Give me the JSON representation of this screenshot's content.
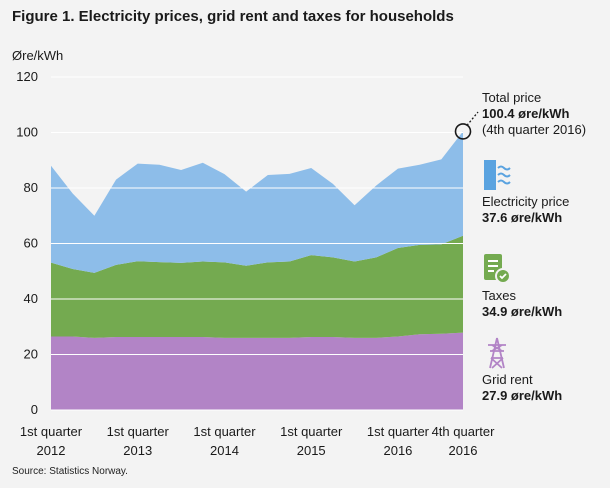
{
  "title": "Figure 1. Electricity prices, grid rent and taxes for households",
  "source": "Source: Statistics Norway.",
  "colors": {
    "electricity": "#8dbde9",
    "taxes": "#74aa50",
    "grid_rent": "#b284c6",
    "grid": "#ffffff",
    "icon": "#5aa3e0",
    "icon_tax": "#74aa50",
    "icon_grid": "#b284c6"
  },
  "chart_data": {
    "type": "area",
    "stacked": true,
    "title": "Figure 1. Electricity prices, grid rent and taxes for households",
    "ylabel": "Øre/kWh",
    "ylim": [
      0,
      120
    ],
    "yticks": [
      0,
      20,
      40,
      60,
      80,
      100,
      120
    ],
    "x": [
      "2012Q1",
      "2012Q2",
      "2012Q3",
      "2012Q4",
      "2013Q1",
      "2013Q2",
      "2013Q3",
      "2013Q4",
      "2014Q1",
      "2014Q2",
      "2014Q3",
      "2014Q4",
      "2015Q1",
      "2015Q2",
      "2015Q3",
      "2015Q4",
      "2016Q1",
      "2016Q2",
      "2016Q3",
      "2016Q4"
    ],
    "xtick_labels": [
      {
        "index": 0,
        "line1": "1st quarter",
        "line2": "2012"
      },
      {
        "index": 4,
        "line1": "1st quarter",
        "line2": "2013"
      },
      {
        "index": 8,
        "line1": "1st quarter",
        "line2": "2014"
      },
      {
        "index": 12,
        "line1": "1st quarter",
        "line2": "2015"
      },
      {
        "index": 16,
        "line1": "1st quarter",
        "line2": "2016"
      },
      {
        "index": 19,
        "line1": "4th quarter",
        "line2": "2016"
      }
    ],
    "series": [
      {
        "name": "Grid rent",
        "values": [
          26.5,
          26.5,
          26.0,
          26.3,
          26.3,
          26.3,
          26.3,
          26.3,
          26.0,
          26.0,
          26.0,
          26.0,
          26.3,
          26.3,
          26.0,
          26.0,
          26.5,
          27.3,
          27.5,
          27.9
        ]
      },
      {
        "name": "Taxes",
        "values": [
          26.6,
          24.3,
          23.4,
          26.0,
          27.3,
          27.0,
          26.7,
          27.2,
          27.2,
          26.0,
          27.2,
          27.5,
          29.5,
          28.7,
          27.5,
          29.0,
          31.9,
          32.2,
          32.2,
          34.9
        ]
      },
      {
        "name": "Electricity price",
        "values": [
          34.9,
          27.2,
          20.6,
          30.7,
          35.2,
          35.1,
          33.5,
          35.6,
          31.8,
          26.7,
          31.5,
          31.6,
          31.4,
          26.5,
          20.3,
          25.9,
          28.6,
          28.9,
          30.6,
          37.6
        ]
      }
    ],
    "total_annotation": {
      "line1": "Total price",
      "line2": "100.4 øre/kWh",
      "line3": "(4th quarter 2016)"
    }
  },
  "legend": {
    "electricity": {
      "line1": "Electricity price",
      "line2": "37.6 øre/kWh"
    },
    "taxes": {
      "line1": "Taxes",
      "line2": "34.9 øre/kWh"
    },
    "grid_rent": {
      "line1": "Grid rent",
      "line2": "27.9 øre/kWh"
    }
  }
}
